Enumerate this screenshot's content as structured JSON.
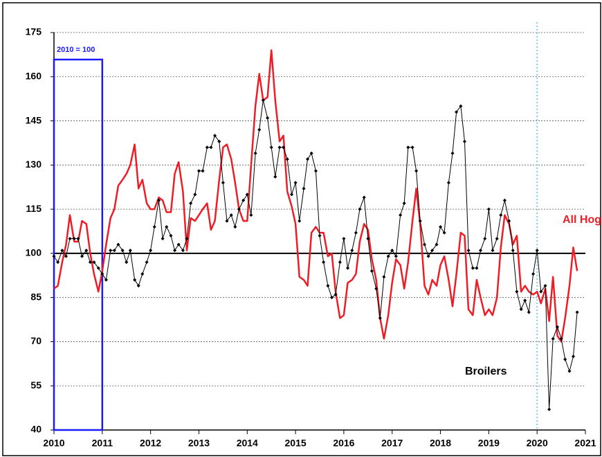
{
  "chart_data": {
    "type": "line",
    "xlim": [
      2010,
      2021
    ],
    "xticks": [
      2010,
      2011,
      2012,
      2013,
      2014,
      2015,
      2016,
      2017,
      2018,
      2019,
      2020,
      2021
    ],
    "ylim": [
      40,
      175
    ],
    "yticks": [
      40,
      55,
      70,
      85,
      100,
      115,
      130,
      145,
      160,
      175
    ],
    "grid": true,
    "reference_line": 100,
    "vline": 2020,
    "highlight": [
      2010,
      2011
    ],
    "annotations": [
      "2010 = 100",
      "All Hogs",
      "Broilers"
    ],
    "x": [
      2010.0,
      2010.08,
      2010.17,
      2010.25,
      2010.33,
      2010.42,
      2010.5,
      2010.58,
      2010.67,
      2010.75,
      2010.83,
      2010.92,
      2011.0,
      2011.08,
      2011.17,
      2011.25,
      2011.33,
      2011.42,
      2011.5,
      2011.58,
      2011.67,
      2011.75,
      2011.83,
      2011.92,
      2012.0,
      2012.08,
      2012.17,
      2012.25,
      2012.33,
      2012.42,
      2012.5,
      2012.58,
      2012.67,
      2012.75,
      2012.83,
      2012.92,
      2013.0,
      2013.08,
      2013.17,
      2013.25,
      2013.33,
      2013.42,
      2013.5,
      2013.58,
      2013.67,
      2013.75,
      2013.83,
      2013.92,
      2014.0,
      2014.08,
      2014.17,
      2014.25,
      2014.33,
      2014.42,
      2014.5,
      2014.58,
      2014.67,
      2014.75,
      2014.83,
      2014.92,
      2015.0,
      2015.08,
      2015.17,
      2015.25,
      2015.33,
      2015.42,
      2015.5,
      2015.58,
      2015.67,
      2015.75,
      2015.83,
      2015.92,
      2016.0,
      2016.08,
      2016.17,
      2016.25,
      2016.33,
      2016.42,
      2016.5,
      2016.58,
      2016.67,
      2016.75,
      2016.83,
      2016.92,
      2017.0,
      2017.08,
      2017.17,
      2017.25,
      2017.33,
      2017.42,
      2017.5,
      2017.58,
      2017.67,
      2017.75,
      2017.83,
      2017.92,
      2018.0,
      2018.08,
      2018.17,
      2018.25,
      2018.33,
      2018.42,
      2018.5,
      2018.58,
      2018.67,
      2018.75,
      2018.83,
      2018.92,
      2019.0,
      2019.08,
      2019.17,
      2019.25,
      2019.33,
      2019.42,
      2019.5,
      2019.58,
      2019.67,
      2019.75,
      2019.83,
      2019.92,
      2020.0,
      2020.08,
      2020.17,
      2020.25,
      2020.33,
      2020.42,
      2020.5,
      2020.58,
      2020.67,
      2020.75,
      2020.83
    ],
    "series": [
      {
        "name": "All Hogs",
        "color": "#ee1c25",
        "marker": false,
        "values": [
          88,
          89,
          97,
          103,
          113,
          104,
          104,
          111,
          110,
          100,
          93,
          87,
          94,
          103,
          112,
          115,
          123,
          125,
          127,
          130,
          137,
          122,
          125,
          117,
          115,
          115,
          119,
          118,
          114,
          114,
          127,
          131,
          121,
          101,
          112,
          111,
          113,
          115,
          117,
          108,
          111,
          125,
          136,
          137,
          132,
          124,
          115,
          111,
          111,
          130,
          150,
          161,
          152,
          153,
          169,
          152,
          138,
          140,
          121,
          116,
          110,
          92,
          91,
          89,
          107,
          109,
          107,
          107,
          99,
          100,
          87,
          78,
          79,
          90,
          91,
          93,
          104,
          110,
          108,
          98,
          91,
          78,
          71,
          79,
          90,
          98,
          96,
          88,
          97,
          111,
          122,
          110,
          89,
          86,
          91,
          89,
          96,
          99,
          91,
          82,
          93,
          107,
          106,
          81,
          79,
          91,
          85,
          79,
          81,
          79,
          85,
          102,
          113,
          110,
          103,
          106,
          87,
          89,
          87,
          86,
          87,
          83,
          88,
          77,
          92,
          72,
          70,
          78,
          89,
          102,
          94
        ]
      },
      {
        "name": "Broilers",
        "color": "#000000",
        "marker": true,
        "values": [
          99,
          97,
          101,
          99,
          105,
          105,
          105,
          99,
          101,
          97,
          97,
          95,
          93,
          91,
          101,
          101,
          103,
          101,
          97,
          101,
          91,
          89,
          93,
          97,
          101,
          109,
          118,
          105,
          109,
          106,
          101,
          103,
          101,
          105,
          117,
          120,
          128,
          128,
          136,
          136,
          140,
          138,
          124,
          111,
          113,
          109,
          115,
          118,
          120,
          113,
          134,
          142,
          152,
          146,
          136,
          126,
          136,
          136,
          132,
          120,
          124,
          111,
          122,
          132,
          134,
          128,
          106,
          97,
          89,
          85,
          86,
          97,
          105,
          95,
          101,
          107,
          115,
          119,
          105,
          94,
          88,
          78,
          92,
          99,
          101,
          99,
          113,
          117,
          136,
          136,
          128,
          111,
          103,
          99,
          101,
          103,
          109,
          107,
          124,
          134,
          148,
          150,
          138,
          101,
          95,
          95,
          101,
          105,
          115,
          101,
          105,
          113,
          118,
          111,
          101,
          87,
          81,
          84,
          80,
          93,
          101,
          87,
          89,
          47,
          71,
          75,
          71,
          64,
          60,
          65,
          80
        ]
      }
    ]
  }
}
